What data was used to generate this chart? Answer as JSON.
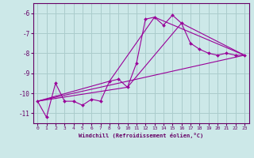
{
  "xlabel": "Windchill (Refroidissement éolien,°C)",
  "background_color": "#cce8e8",
  "grid_color": "#aacccc",
  "line_color": "#990099",
  "xlim": [
    -0.5,
    23.5
  ],
  "ylim": [
    -11.5,
    -5.5
  ],
  "yticks": [
    -11,
    -10,
    -9,
    -8,
    -7,
    -6
  ],
  "xticks": [
    0,
    1,
    2,
    3,
    4,
    5,
    6,
    7,
    8,
    9,
    10,
    11,
    12,
    13,
    14,
    15,
    16,
    17,
    18,
    19,
    20,
    21,
    22,
    23
  ],
  "series1_x": [
    0,
    1,
    2,
    3,
    4,
    5,
    6,
    7,
    8,
    9,
    10,
    11,
    12,
    13,
    14,
    15,
    16,
    17,
    18,
    19,
    20,
    21,
    22,
    23
  ],
  "series1_y": [
    -10.4,
    -11.2,
    -9.5,
    -10.4,
    -10.4,
    -10.6,
    -10.3,
    -10.4,
    -9.4,
    -9.3,
    -9.7,
    -8.5,
    -6.3,
    -6.2,
    -6.6,
    -6.1,
    -6.5,
    -7.5,
    -7.8,
    -8.0,
    -8.1,
    -8.0,
    -8.1,
    -8.1
  ],
  "series2_x": [
    0,
    23
  ],
  "series2_y": [
    -10.4,
    -8.1
  ],
  "series3_x": [
    0,
    10,
    16,
    23
  ],
  "series3_y": [
    -10.4,
    -9.7,
    -6.5,
    -8.1
  ],
  "series4_x": [
    0,
    8,
    13,
    23
  ],
  "series4_y": [
    -10.4,
    -9.4,
    -6.2,
    -8.1
  ]
}
